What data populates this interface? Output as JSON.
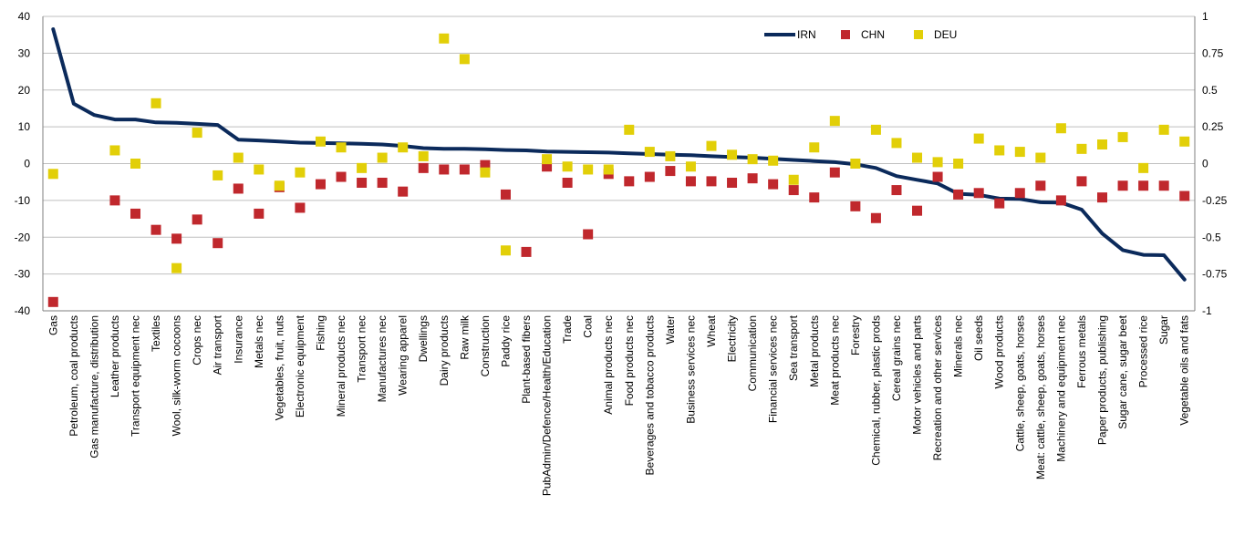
{
  "chart_data": {
    "type": "line",
    "categories": [
      "Gas",
      "Petroleum, coal products",
      "Gas manufacture, distribution",
      "Leather products",
      "Transport equipment nec",
      "Textiles",
      "Wool, silk-worm cocoons",
      "Crops nec",
      "Air transport",
      "Insurance",
      "Metals nec",
      "Vegetables, fruit, nuts",
      "Electronic equipment",
      "Fishing",
      "Mineral products nec",
      "Transport nec",
      "Manufactures nec",
      "Wearing apparel",
      "Dwellings",
      "Dairy products",
      "Raw milk",
      "Construction",
      "Paddy rice",
      "Plant-based fibers",
      "PubAdmin/Defence/Health/Education",
      "Trade",
      "Coal",
      "Animal products nec",
      "Food products nec",
      "Beverages and tobacco products",
      "Water",
      "Business services nec",
      "Wheat",
      "Electricity",
      "Communication",
      "Financial services nec",
      "Sea transport",
      "Metal products",
      "Meat products nec",
      "Forestry",
      "Chemical, rubber, plastic prods",
      "Cereal grains nec",
      "Motor vehicles and parts",
      "Recreation and other services",
      "Minerals nec",
      "Oil seeds",
      "Wood products",
      "Cattle, sheep, goats, horses",
      "Meat: cattle, sheep, goats, horses",
      "Machinery and equipment nec",
      "Ferrous metals",
      "Paper products, publishing",
      "Sugar cane, sugar beet",
      "Processed rice",
      "Sugar",
      "Vegetable oils and fats"
    ],
    "series": [
      {
        "name": "IRN",
        "type": "line",
        "axis": "left",
        "color": "#0b2a5b",
        "values": [
          36.5,
          16.3,
          13.2,
          12.0,
          12.0,
          11.2,
          11.1,
          10.8,
          10.5,
          6.5,
          6.3,
          6.0,
          5.7,
          5.6,
          5.5,
          5.4,
          5.2,
          4.8,
          4.2,
          4.0,
          4.0,
          3.9,
          3.7,
          3.6,
          3.3,
          3.2,
          3.1,
          3.0,
          2.8,
          2.6,
          2.4,
          2.3,
          2.0,
          1.8,
          1.6,
          1.3,
          1.0,
          0.7,
          0.4,
          -0.2,
          -1.2,
          -3.4,
          -4.4,
          -5.4,
          -8.2,
          -8.5,
          -9.5,
          -9.6,
          -10.5,
          -10.6,
          -12.5,
          -19.0,
          -23.5,
          -24.8,
          -24.9,
          -31.5
        ]
      },
      {
        "name": "CHN",
        "type": "scatter",
        "axis": "right",
        "color": "#c0282d",
        "values": [
          -0.94,
          null,
          null,
          -0.25,
          -0.34,
          -0.45,
          -0.51,
          -0.38,
          -0.54,
          -0.17,
          -0.34,
          -0.16,
          -0.3,
          -0.14,
          -0.09,
          -0.13,
          -0.13,
          -0.19,
          -0.03,
          -0.04,
          -0.04,
          -0.01,
          -0.21,
          -0.6,
          -0.02,
          -0.13,
          -0.48,
          -0.07,
          -0.12,
          -0.09,
          -0.05,
          -0.12,
          -0.12,
          -0.13,
          -0.1,
          -0.14,
          -0.18,
          -0.23,
          -0.06,
          -0.29,
          -0.37,
          -0.18,
          -0.32,
          -0.09,
          -0.21,
          -0.2,
          -0.27,
          -0.2,
          -0.15,
          -0.25,
          -0.12,
          -0.23,
          -0.15,
          -0.15,
          -0.15,
          -0.22
        ]
      },
      {
        "name": "DEU",
        "type": "scatter",
        "axis": "right",
        "color": "#e2cf08",
        "values": [
          -0.07,
          null,
          null,
          0.09,
          0.0,
          0.41,
          -0.71,
          0.21,
          -0.08,
          0.04,
          -0.04,
          -0.15,
          -0.06,
          0.15,
          0.11,
          -0.03,
          0.04,
          0.11,
          0.05,
          0.85,
          0.71,
          -0.06,
          -0.59,
          null,
          0.03,
          -0.02,
          -0.04,
          -0.04,
          0.23,
          0.08,
          0.05,
          -0.02,
          0.12,
          0.06,
          0.03,
          0.02,
          -0.11,
          0.11,
          0.29,
          0.0,
          0.23,
          0.14,
          0.04,
          0.01,
          0.0,
          0.17,
          0.09,
          0.08,
          0.04,
          0.24,
          0.1,
          0.13,
          0.18,
          -0.03,
          0.23,
          0.15
        ]
      }
    ],
    "y_left": {
      "ylim": [
        -40,
        40
      ],
      "ticks": [
        "-40",
        "-30",
        "-20",
        "-10",
        "0",
        "10",
        "20",
        "30",
        "40"
      ]
    },
    "y_right": {
      "ylim": [
        -1,
        1
      ],
      "ticks": [
        "-1",
        "-0.75",
        "-0.5",
        "-0.25",
        "0",
        "0.25",
        "0.5",
        "0.75",
        "1"
      ]
    },
    "grid": true,
    "legend_position": "top-right",
    "title": "",
    "xlabel": "",
    "ylabel": ""
  }
}
